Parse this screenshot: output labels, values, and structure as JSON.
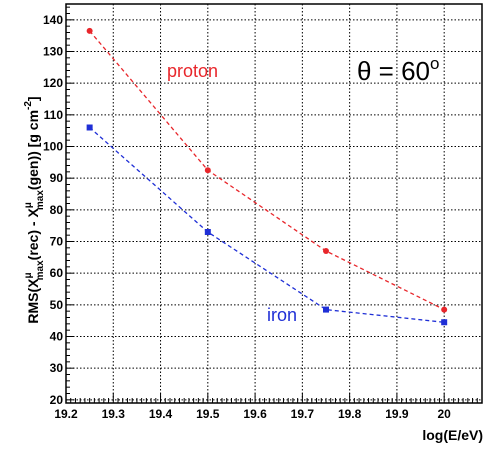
{
  "chart_data": {
    "type": "line",
    "xlabel": "log(E/eV)",
    "ylabel_parts": {
      "prefix": "RMS(X",
      "sup1": "μ",
      "sub1": "max",
      "middle": "(rec) - X",
      "sup2": "μ",
      "sub2": "max",
      "suffix": "(gen)) [g cm",
      "sup3": "-2",
      "end": "]"
    },
    "xlim": [
      19.2,
      20.08
    ],
    "ylim": [
      19,
      145
    ],
    "x_ticks": [
      19.2,
      19.3,
      19.4,
      19.5,
      19.6,
      19.7,
      19.8,
      19.9,
      20
    ],
    "x_tick_labels": [
      "19.2",
      "19.3",
      "19.4",
      "19.5",
      "19.6",
      "19.7",
      "19.8",
      "19.9",
      "20"
    ],
    "y_ticks": [
      20,
      30,
      40,
      50,
      60,
      70,
      80,
      90,
      100,
      110,
      120,
      130,
      140
    ],
    "y_tick_labels": [
      "20",
      "30",
      "40",
      "50",
      "60",
      "70",
      "80",
      "90",
      "100",
      "110",
      "120",
      "130",
      "140"
    ],
    "grid": true,
    "annotation": "θ = 60°",
    "annotation_parts": {
      "main": "θ = 60",
      "sup": "o"
    },
    "series": [
      {
        "name": "proton",
        "color": "#e8262b",
        "marker": "circle",
        "x": [
          19.25,
          19.5,
          19.75,
          20.0
        ],
        "y": [
          136.5,
          92.5,
          67.0,
          48.5
        ]
      },
      {
        "name": "iron",
        "color": "#1f2fd6",
        "marker": "square",
        "x": [
          19.25,
          19.5,
          19.75,
          20.0
        ],
        "y": [
          106.0,
          73.0,
          48.5,
          44.5
        ]
      }
    ]
  }
}
